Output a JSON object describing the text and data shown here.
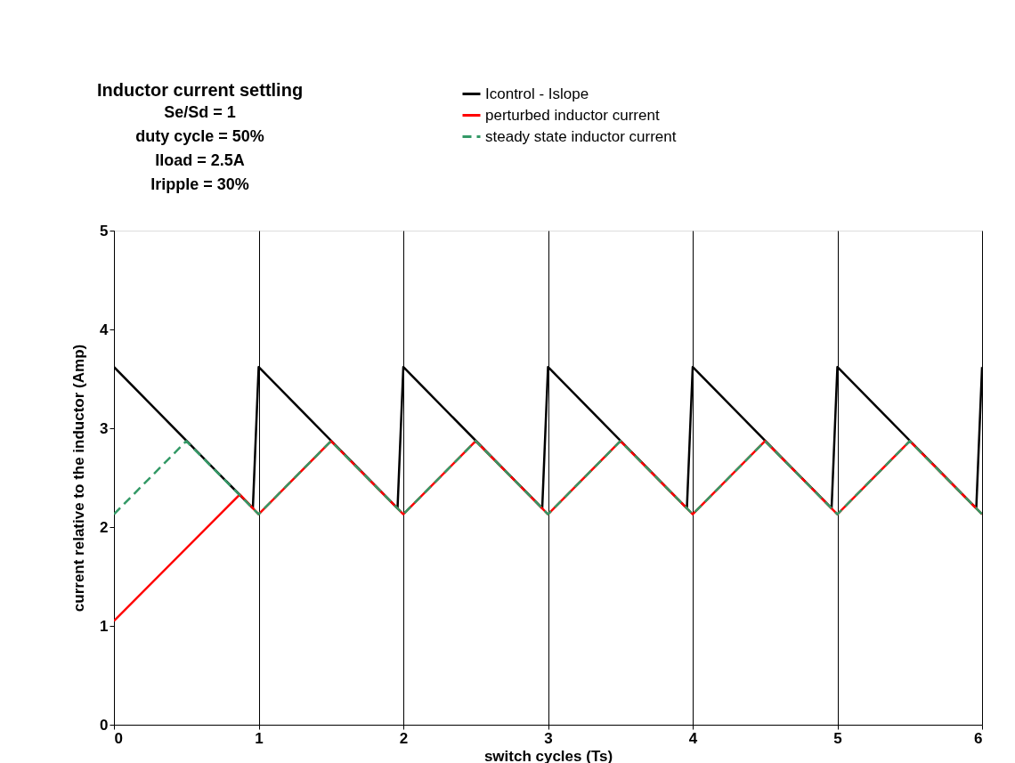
{
  "chart_data": {
    "type": "line",
    "title": "Inductor current settling",
    "subtitle": [
      "Se/Sd = 1",
      "duty cycle = 50%",
      "Iload = 2.5A",
      "Iripple = 30%"
    ],
    "xlabel": "switch cycles (Ts)",
    "ylabel": "current relative to the inductor (Amp)",
    "xlim": [
      0,
      6
    ],
    "xticks": [
      0,
      1,
      2,
      3,
      4,
      5,
      6
    ],
    "ylim": [
      0,
      5
    ],
    "yticks": [
      0,
      1,
      2,
      3,
      4,
      5
    ],
    "grid": "x",
    "legend": "top right",
    "marker": "none",
    "series": [
      {
        "name": "Icontrol - Islope",
        "color": "#000000",
        "line_style": "solid",
        "x": [
          0,
          0.96,
          1,
          1.96,
          2,
          2.96,
          3,
          3.96,
          4,
          4.96,
          5,
          5.96,
          6
        ],
        "values": [
          3.62,
          2.19,
          3.62,
          2.19,
          3.62,
          2.19,
          3.62,
          2.19,
          3.62,
          2.19,
          3.62,
          2.19,
          3.62
        ]
      },
      {
        "name": "perturbed inductor current",
        "color": "#ff0000",
        "line_style": "solid",
        "x": [
          0,
          0.87,
          1,
          1.5,
          2,
          2.5,
          3,
          3.5,
          4,
          4.5,
          5,
          5.5,
          6
        ],
        "values": [
          1.05,
          2.33,
          2.13,
          2.87,
          2.13,
          2.87,
          2.13,
          2.87,
          2.13,
          2.87,
          2.13,
          2.87,
          2.13
        ]
      },
      {
        "name": "steady state inductor current",
        "color": "#339966",
        "line_style": "dashed",
        "x": [
          0,
          0.5,
          1,
          1.5,
          2,
          2.5,
          3,
          3.5,
          4,
          4.5,
          5,
          5.5,
          6
        ],
        "values": [
          2.13,
          2.87,
          2.13,
          2.87,
          2.13,
          2.87,
          2.13,
          2.87,
          2.13,
          2.87,
          2.13,
          2.87,
          2.13
        ]
      }
    ]
  }
}
